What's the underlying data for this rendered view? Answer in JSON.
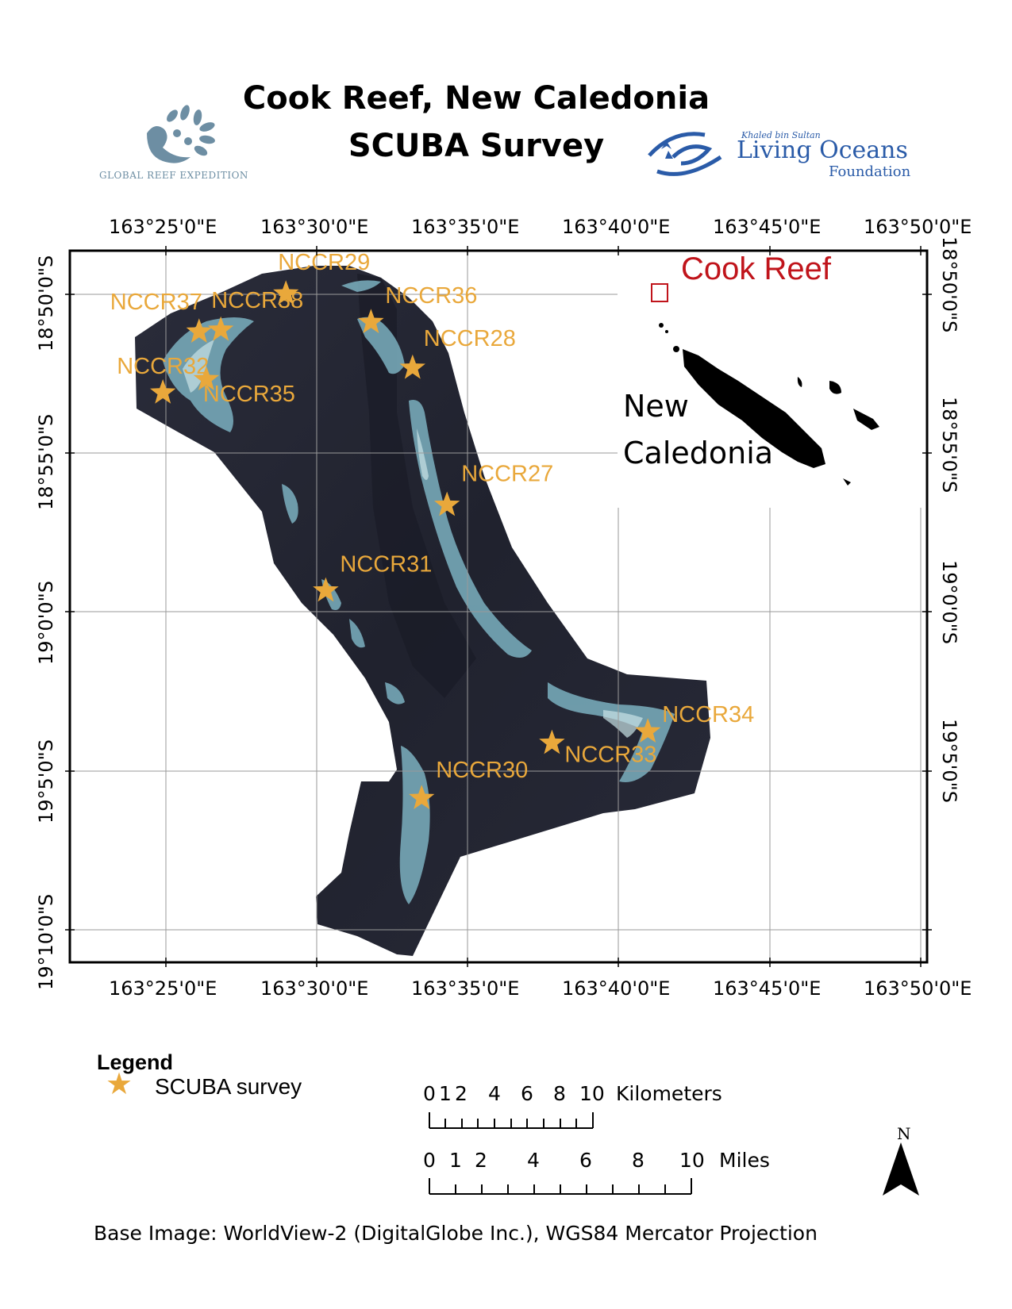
{
  "header": {
    "title_line1": "Cook Reef, New Caledonia",
    "title_line2": "SCUBA Survey",
    "logo_left_text": "GLOBAL REEF EXPEDITION",
    "logo_right_sub": "Khaled bin Sultan",
    "logo_right_main": "Living Oceans",
    "logo_right_foundation": "Foundation"
  },
  "map": {
    "x_ticks": [
      "163°25'0\"E",
      "163°30'0\"E",
      "163°35'0\"E",
      "163°40'0\"E",
      "163°45'0\"E",
      "163°50'0\"E"
    ],
    "y_ticks": [
      "18°50'0\"S",
      "18°55'0\"S",
      "19°0'0\"S",
      "19°5'0\"S",
      "19°10'0\"S"
    ],
    "survey_color": "#e9a83b",
    "inset": {
      "box_label": "Cook Reef",
      "box_label_color": "#c0141b",
      "country_label_line1": "New",
      "country_label_line2": "Caledonia"
    },
    "sites": [
      {
        "id": "NCCR29",
        "lon": 163.483,
        "lat": -18.833
      },
      {
        "id": "NCCR36",
        "lon": 163.53,
        "lat": -18.848
      },
      {
        "id": "NCCR28",
        "lon": 163.553,
        "lat": -18.872
      },
      {
        "id": "NCCR37",
        "lon": 163.435,
        "lat": -18.853
      },
      {
        "id": "NCCR38",
        "lon": 163.447,
        "lat": -18.852
      },
      {
        "id": "NCCR35",
        "lon": 163.439,
        "lat": -18.878
      },
      {
        "id": "NCCR32",
        "lon": 163.415,
        "lat": -18.885
      },
      {
        "id": "NCCR27",
        "lon": 163.572,
        "lat": -18.944
      },
      {
        "id": "NCCR31",
        "lon": 163.505,
        "lat": -18.989
      },
      {
        "id": "NCCR34",
        "lon": 163.683,
        "lat": -19.063
      },
      {
        "id": "NCCR33",
        "lon": 163.63,
        "lat": -19.069
      },
      {
        "id": "NCCR30",
        "lon": 163.558,
        "lat": -19.098
      }
    ]
  },
  "legend": {
    "title": "Legend",
    "item_label": "SCUBA survey"
  },
  "scalebar": {
    "km_ticks": [
      "0",
      "1",
      "2",
      "4",
      "6",
      "8",
      "10"
    ],
    "km_unit": "Kilometers",
    "mi_ticks": [
      "0",
      "1",
      "2",
      "4",
      "6",
      "8",
      "10"
    ],
    "mi_unit": "Miles"
  },
  "north_arrow_label": "N",
  "credit": "Base Image: WorldView-2 (DigitalGlobe Inc.), WGS84 Mercator Projection"
}
